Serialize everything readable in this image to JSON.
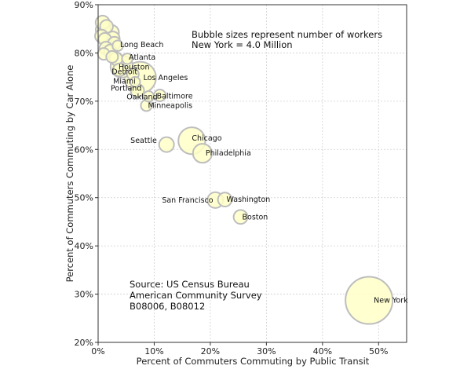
{
  "chart_data": {
    "type": "scatter",
    "xlabel": "Percent of Commuters Commuting by Public Transit",
    "ylabel": "Percent of Commuters Commuting by Car Alone",
    "xlim": [
      0,
      55
    ],
    "ylim": [
      20,
      90
    ],
    "x_ticks": [
      0,
      10,
      20,
      30,
      40,
      50
    ],
    "y_ticks": [
      20,
      30,
      40,
      50,
      60,
      70,
      80,
      90
    ],
    "x_tick_labels": [
      "0%",
      "10%",
      "20%",
      "30%",
      "40%",
      "50%"
    ],
    "y_tick_labels": [
      "20%",
      "30%",
      "40%",
      "50%",
      "60%",
      "70%",
      "80%",
      "90%"
    ],
    "grid": true,
    "bubble_color": "#ffffc8",
    "bubble_edge": "#bdbdbd",
    "annotations": {
      "size_note_line1": "Bubble sizes represent number of workers",
      "size_note_line2": "New York = 4.0 Million",
      "source_line1": "Source: US Census Bureau",
      "source_line2": "American Community Survey",
      "source_line3": "B08006, B08012"
    },
    "points": [
      {
        "label": "",
        "x": 0.8,
        "y": 86.3,
        "workers": 0.35
      },
      {
        "label": "",
        "x": 1.5,
        "y": 85.5,
        "workers": 0.3
      },
      {
        "label": "",
        "x": 0.9,
        "y": 84.8,
        "workers": 0.4
      },
      {
        "label": "",
        "x": 2.3,
        "y": 84.2,
        "workers": 0.45
      },
      {
        "label": "",
        "x": 0.6,
        "y": 83.5,
        "workers": 0.3
      },
      {
        "label": "",
        "x": 2.6,
        "y": 83.0,
        "workers": 0.35
      },
      {
        "label": "",
        "x": 1.2,
        "y": 82.8,
        "workers": 0.3
      },
      {
        "label": "",
        "x": 2.9,
        "y": 82.0,
        "workers": 0.3
      },
      {
        "label": "",
        "x": 1.4,
        "y": 81.0,
        "workers": 0.3
      },
      {
        "label": "Long Beach",
        "x": 3.5,
        "y": 81.5,
        "workers": 0.2
      },
      {
        "label": "",
        "x": 2.2,
        "y": 80.4,
        "workers": 0.3
      },
      {
        "label": "",
        "x": 1.0,
        "y": 79.8,
        "workers": 0.25
      },
      {
        "label": "",
        "x": 2.5,
        "y": 79.2,
        "workers": 0.25
      },
      {
        "label": "",
        "x": 3.2,
        "y": 78.8,
        "workers": 0.3
      },
      {
        "label": "Atlanta",
        "x": 5.2,
        "y": 78.8,
        "workers": 0.2
      },
      {
        "label": "Houston",
        "x": 4.2,
        "y": 77.2,
        "workers": 0.9
      },
      {
        "label": "",
        "x": 3.8,
        "y": 76.5,
        "workers": 0.3
      },
      {
        "label": "Detroit",
        "x": 6.2,
        "y": 75.6,
        "workers": 0.25
      },
      {
        "label": "Los Angeles",
        "x": 7.5,
        "y": 74.9,
        "workers": 1.8
      },
      {
        "label": "Miami",
        "x": 6.6,
        "y": 74.0,
        "workers": 0.18
      },
      {
        "label": "Portland",
        "x": 7.0,
        "y": 72.2,
        "workers": 0.32
      },
      {
        "label": "Baltimore",
        "x": 11.0,
        "y": 71.2,
        "workers": 0.25
      },
      {
        "label": "Oakland",
        "x": 9.0,
        "y": 71.0,
        "workers": 0.2
      },
      {
        "label": "Minneapolis",
        "x": 8.6,
        "y": 69.1,
        "workers": 0.22
      },
      {
        "label": "Seattle",
        "x": 12.2,
        "y": 61.0,
        "workers": 0.4
      },
      {
        "label": "Chicago",
        "x": 16.7,
        "y": 61.8,
        "workers": 1.3
      },
      {
        "label": "Philadelphia",
        "x": 18.6,
        "y": 59.2,
        "workers": 0.65
      },
      {
        "label": "San Francisco",
        "x": 20.9,
        "y": 49.5,
        "workers": 0.45
      },
      {
        "label": "Washington",
        "x": 22.6,
        "y": 49.6,
        "workers": 0.35
      },
      {
        "label": "Boston",
        "x": 25.4,
        "y": 46.0,
        "workers": 0.35
      },
      {
        "label": "New York",
        "x": 48.3,
        "y": 28.7,
        "workers": 4.0
      }
    ]
  }
}
